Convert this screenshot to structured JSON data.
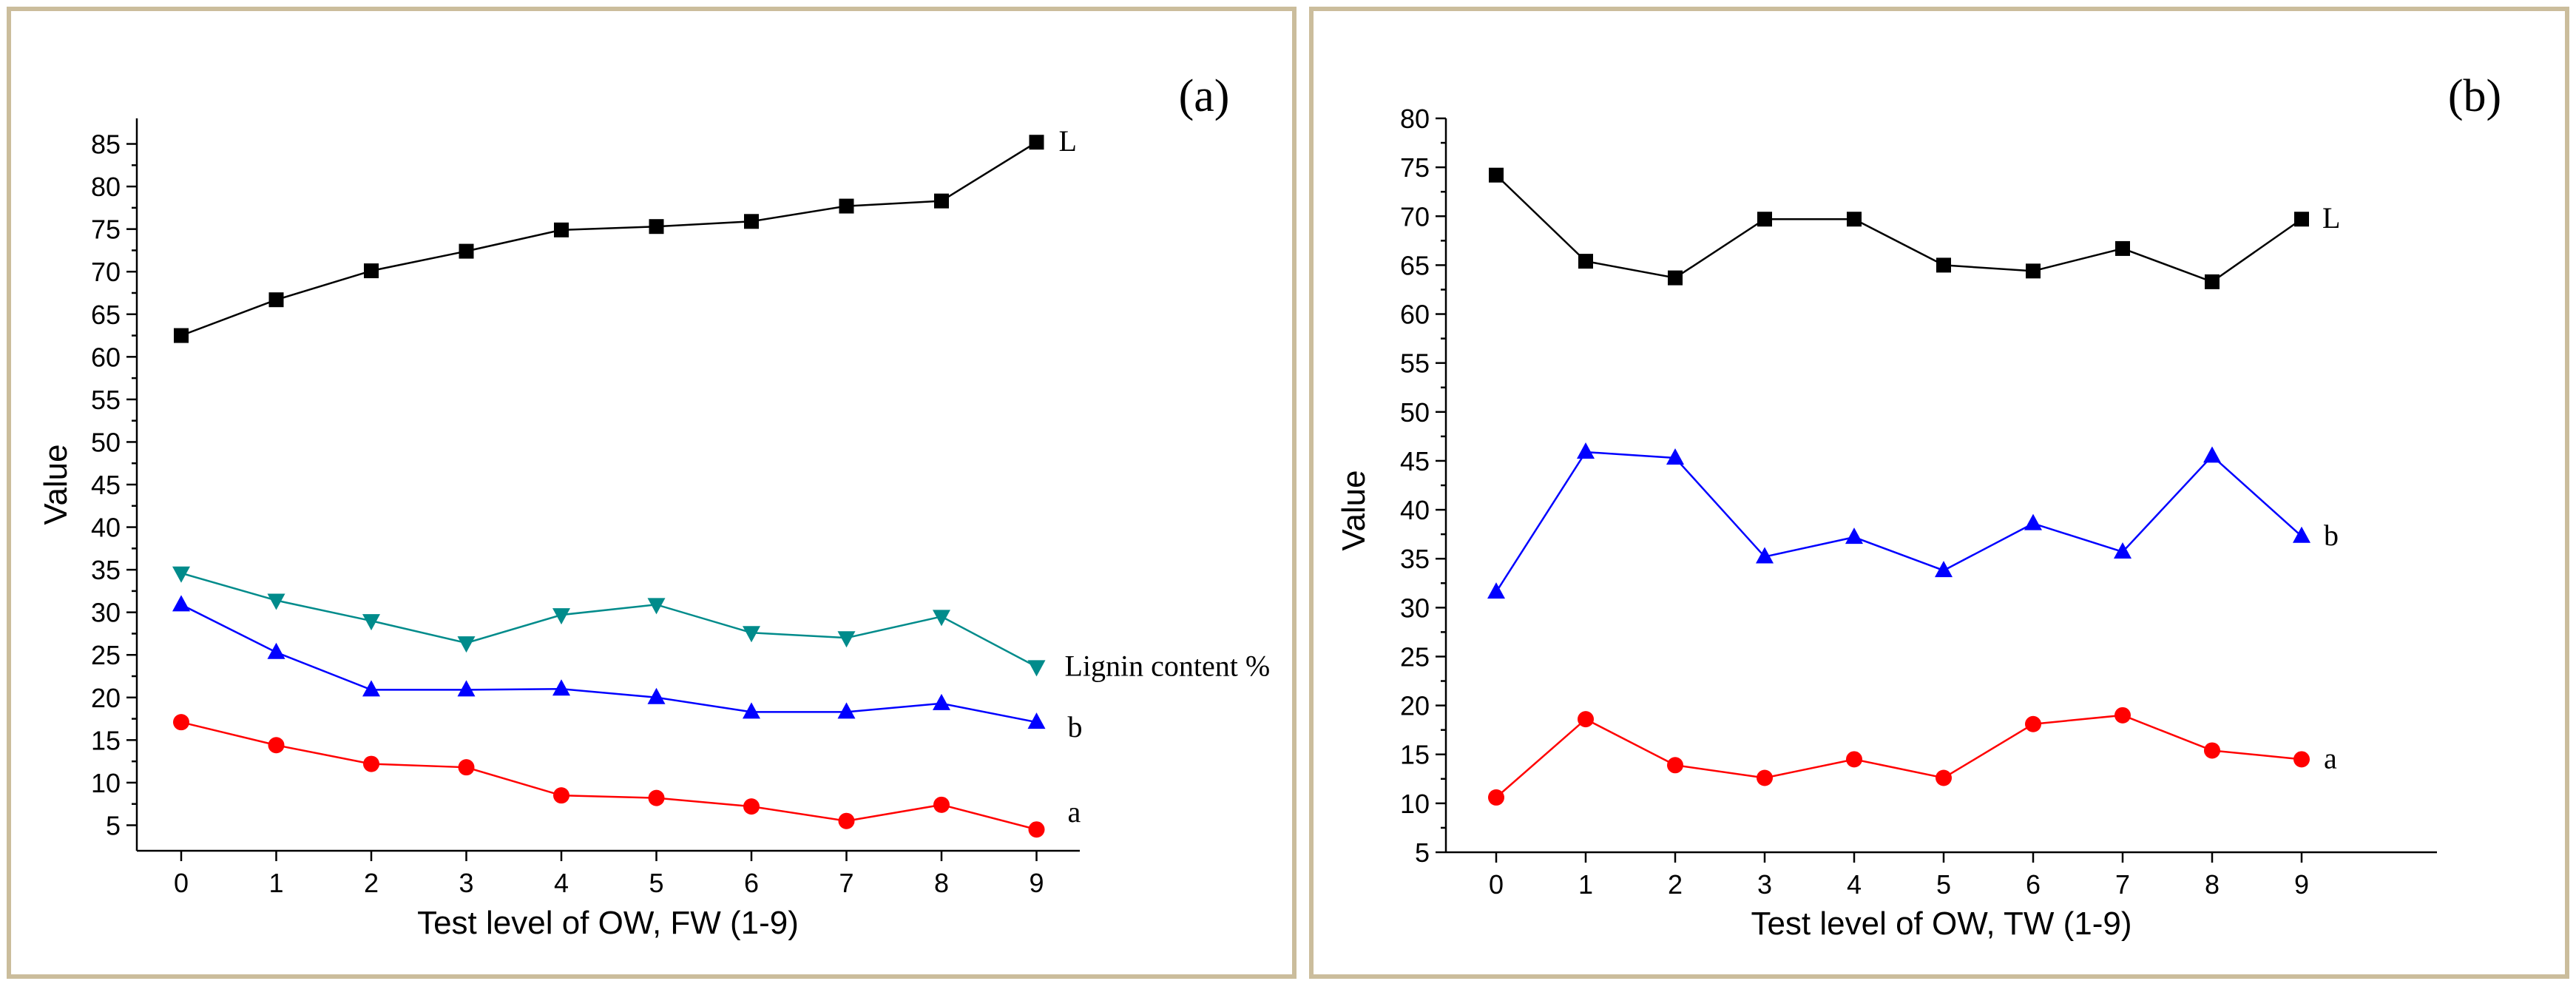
{
  "chart_data": [
    {
      "type": "line",
      "panel_label": "(a)",
      "xlabel": "Test level of OW, FW (1-9)",
      "ylabel": "Value",
      "x": [
        0,
        1,
        2,
        3,
        4,
        5,
        6,
        7,
        8,
        9
      ],
      "xticks": [
        "0",
        "1",
        "2",
        "3",
        "4",
        "5",
        "6",
        "7",
        "8",
        "9"
      ],
      "ylim": [
        2,
        88
      ],
      "yticks": [
        "5",
        "10",
        "15",
        "20",
        "25",
        "30",
        "35",
        "40",
        "45",
        "50",
        "55",
        "60",
        "65",
        "70",
        "75",
        "80",
        "85"
      ],
      "series": [
        {
          "name": "L",
          "color": "#000000",
          "marker": "square",
          "values": [
            62.5,
            66.7,
            70.1,
            72.4,
            74.9,
            75.3,
            75.9,
            77.7,
            78.3,
            85.2
          ]
        },
        {
          "name": "Lignin content %",
          "color": "#008b8b",
          "marker": "triangle-down",
          "values": [
            34.6,
            31.4,
            29.0,
            26.4,
            29.7,
            30.9,
            27.6,
            27.0,
            29.5,
            23.6
          ]
        },
        {
          "name": "b",
          "color": "#0000ff",
          "marker": "triangle-up",
          "values": [
            30.9,
            25.3,
            20.9,
            20.9,
            21.0,
            20.0,
            18.3,
            18.3,
            19.3,
            17.1
          ]
        },
        {
          "name": "a",
          "color": "#ff0000",
          "marker": "circle",
          "values": [
            17.1,
            14.4,
            12.2,
            11.8,
            8.5,
            8.2,
            7.2,
            5.5,
            7.4,
            4.5
          ]
        }
      ]
    },
    {
      "type": "line",
      "panel_label": "(b)",
      "xlabel": "Test level of OW, TW (1-9)",
      "ylabel": "Value",
      "x": [
        0,
        1,
        2,
        3,
        4,
        5,
        6,
        7,
        8,
        9
      ],
      "xticks": [
        "0",
        "1",
        "2",
        "3",
        "4",
        "5",
        "6",
        "7",
        "8",
        "9"
      ],
      "ylim": [
        5,
        80
      ],
      "yticks": [
        "5",
        "10",
        "15",
        "20",
        "25",
        "30",
        "35",
        "40",
        "45",
        "50",
        "55",
        "60",
        "65",
        "70",
        "75",
        "80"
      ],
      "series": [
        {
          "name": "L",
          "color": "#000000",
          "marker": "square",
          "values": [
            74.2,
            65.4,
            63.7,
            69.7,
            69.7,
            65.0,
            64.4,
            66.7,
            63.3,
            69.7
          ]
        },
        {
          "name": "b",
          "color": "#0000ff",
          "marker": "triangle-up",
          "values": [
            31.6,
            45.9,
            45.3,
            35.2,
            37.2,
            33.8,
            38.6,
            35.7,
            45.5,
            37.3
          ]
        },
        {
          "name": "a",
          "color": "#ff0000",
          "marker": "circle",
          "values": [
            10.6,
            18.6,
            13.9,
            12.6,
            14.5,
            12.6,
            18.1,
            19.0,
            15.4,
            14.5
          ]
        }
      ]
    }
  ]
}
